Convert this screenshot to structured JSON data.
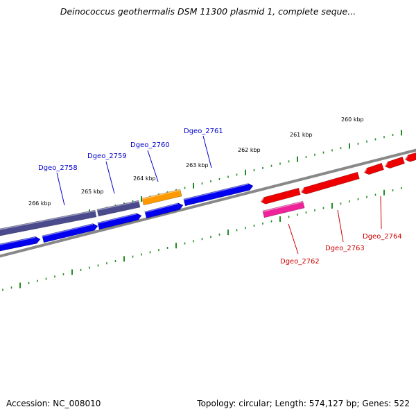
{
  "header": {
    "title": "Deinococcus geothermalis DSM 11300 plasmid 1, complete seque..."
  },
  "footer": {
    "accession": "Accession: NC_008010",
    "summary": "Topology: circular; Length: 574,127 bp; Genes: 522"
  },
  "chart_data": {
    "type": "genome-map",
    "colors": {
      "backbone": "#888888",
      "tick": "#228B22",
      "forward_label": "#0000CC",
      "reverse_label": "#CC0000",
      "dark_gene": "#4A4A8C",
      "blue_gene": "#0000EE",
      "orange_gene": "#FF9900",
      "red_gene": "#EE0000",
      "pink_gene": "#EE2299"
    },
    "tick_labels": [
      "266 kbp",
      "265 kbp",
      "264 kbp",
      "263 kbp",
      "262 kbp",
      "261 kbp",
      "260 kbp"
    ],
    "gene_labels_forward": [
      "Dgeo_2758",
      "Dgeo_2759",
      "Dgeo_2760",
      "Dgeo_2761"
    ],
    "gene_labels_reverse": [
      "Dgeo_2762",
      "Dgeo_2763",
      "Dgeo_2764"
    ]
  }
}
